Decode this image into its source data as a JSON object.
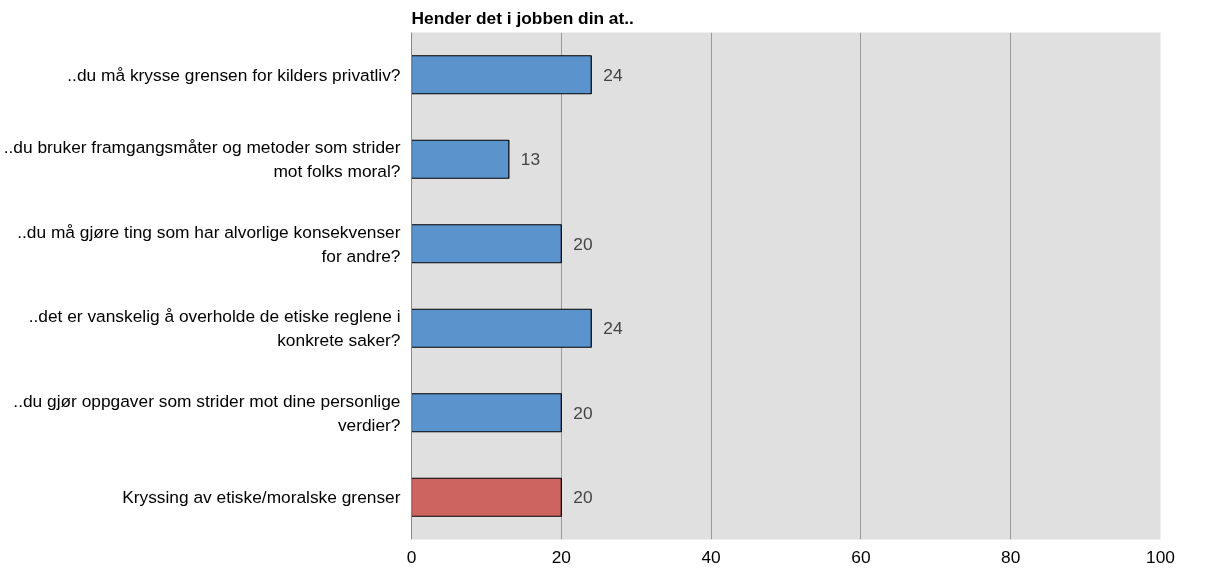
{
  "chart_data": {
    "type": "bar",
    "orientation": "horizontal",
    "title": "Hender det i jobben din at..",
    "categories": [
      "..du må krysse grensen for kilders privatliv?",
      "..du bruker framgangsmåter og metoder som strider mot folks moral?",
      "..du må gjøre ting som har alvorlige konsekvenser for andre?",
      "..det er vanskelig å overholde de etiske reglene i konkrete saker?",
      "..du gjør oppgaver som strider mot dine personlige verdier?",
      "Kryssing av etiske/moralske grenser"
    ],
    "values": [
      24,
      13,
      20,
      24,
      20,
      20
    ],
    "colors": [
      "#5b93cc",
      "#5b93cc",
      "#5b93cc",
      "#5b93cc",
      "#5b93cc",
      "#cd6460"
    ],
    "xlim": [
      0,
      100
    ],
    "xticks": [
      0,
      20,
      40,
      60,
      80,
      100
    ],
    "grid": "x",
    "data_labels": true
  }
}
